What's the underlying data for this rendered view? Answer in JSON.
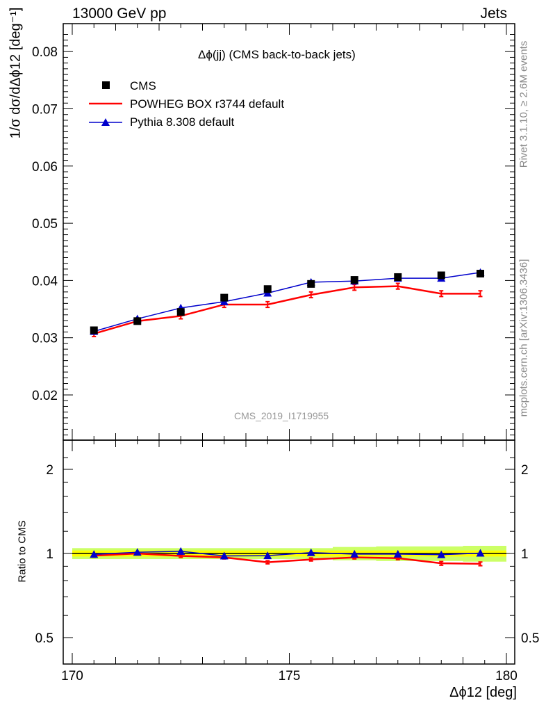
{
  "header": {
    "left": "13000 GeV pp",
    "right": "Jets"
  },
  "side": {
    "rivet": "Rivet 3.1.10, ≥ 2.6M events",
    "mcplots": "mcplots.cern.ch [arXiv:1306.3436]"
  },
  "watermark": "CMS_2019_I1719955",
  "plot_title": "Δϕ(jj) (CMS back-to-back jets)",
  "ylabel_main": "1/σ dσ/dΔϕ12 [deg⁻¹]",
  "ylabel_ratio": "Ratio to CMS",
  "xlabel": "Δϕ12 [deg]",
  "colors": {
    "data": "#000000",
    "powheg": "#ff0000",
    "pythia": "#0000cc",
    "band_inner": "#ffff00",
    "band_outer": "#ccff66"
  },
  "chart_data": [
    {
      "type": "scatter",
      "panel": "main",
      "title": "Δϕ(jj) (CMS back-to-back jets)",
      "xlabel": "Δϕ12 [deg]",
      "ylabel": "1/σ dσ/dΔϕ12 [deg-1]",
      "xlim": [
        170,
        180
      ],
      "ylim": [
        0.0125,
        0.085
      ],
      "yticks": [
        "0.02",
        "0.03",
        "0.04",
        "0.05",
        "0.06",
        "0.07",
        "0.08"
      ],
      "legend_position": "top-left",
      "x": [
        170.5,
        171.5,
        172.5,
        173.5,
        174.5,
        175.5,
        176.5,
        177.5,
        178.5,
        179.4
      ],
      "series": [
        {
          "name": "CMS",
          "style": "marker-square",
          "values": [
            0.0313,
            0.0329,
            0.0345,
            0.037,
            0.0385,
            0.0394,
            0.0401,
            0.0406,
            0.0409,
            0.0412
          ],
          "errors": [
            0.0004,
            0.0004,
            0.0004,
            0.0004,
            0.0004,
            0.0004,
            0.0004,
            0.0004,
            0.0004,
            0.0004
          ]
        },
        {
          "name": "POWHEG BOX r3744 default",
          "style": "line",
          "values": [
            0.0307,
            0.0329,
            0.0338,
            0.0358,
            0.0358,
            0.0375,
            0.0388,
            0.039,
            0.0377,
            0.0377
          ],
          "errors": [
            0.0005,
            0.0005,
            0.0005,
            0.0005,
            0.0005,
            0.0005,
            0.0005,
            0.0005,
            0.0005,
            0.0005
          ]
        },
        {
          "name": "Pythia 8.308 default",
          "style": "line-triangle",
          "values": [
            0.0311,
            0.0333,
            0.0352,
            0.0363,
            0.0378,
            0.0397,
            0.0399,
            0.0404,
            0.0404,
            0.0414
          ],
          "errors": [
            0.0002,
            0.0002,
            0.0002,
            0.0002,
            0.0002,
            0.0002,
            0.0002,
            0.0002,
            0.0002,
            0.0002
          ]
        }
      ]
    },
    {
      "type": "line",
      "panel": "ratio",
      "ylabel": "Ratio to CMS",
      "xlim": [
        170,
        180
      ],
      "ylim": [
        0.4,
        2.4
      ],
      "ylog": true,
      "yticks": [
        "0.5",
        "1",
        "2"
      ],
      "x": [
        170.5,
        171.5,
        172.5,
        173.5,
        174.5,
        175.5,
        176.5,
        177.5,
        178.5,
        179.4
      ],
      "band": {
        "inner": [
          0.025,
          0.025,
          0.025,
          0.025,
          0.025,
          0.025,
          0.025,
          0.025,
          0.025,
          0.025
        ],
        "outer": [
          0.045,
          0.045,
          0.045,
          0.045,
          0.045,
          0.045,
          0.055,
          0.06,
          0.06,
          0.065
        ]
      },
      "series": [
        {
          "name": "POWHEG BOX r3744 default",
          "values": [
            0.982,
            1.0,
            0.98,
            0.968,
            0.93,
            0.952,
            0.968,
            0.962,
            0.922,
            0.918
          ],
          "errors": [
            0.012,
            0.012,
            0.012,
            0.012,
            0.012,
            0.012,
            0.012,
            0.012,
            0.014,
            0.014
          ]
        },
        {
          "name": "Pythia 8.308 default",
          "values": [
            0.993,
            1.01,
            1.018,
            0.98,
            0.982,
            1.007,
            0.995,
            0.995,
            0.99,
            1.003
          ],
          "errors": [
            0.006,
            0.006,
            0.006,
            0.006,
            0.006,
            0.006,
            0.006,
            0.006,
            0.006,
            0.006
          ]
        }
      ],
      "xticks": [
        "170",
        "175",
        "180"
      ]
    }
  ]
}
